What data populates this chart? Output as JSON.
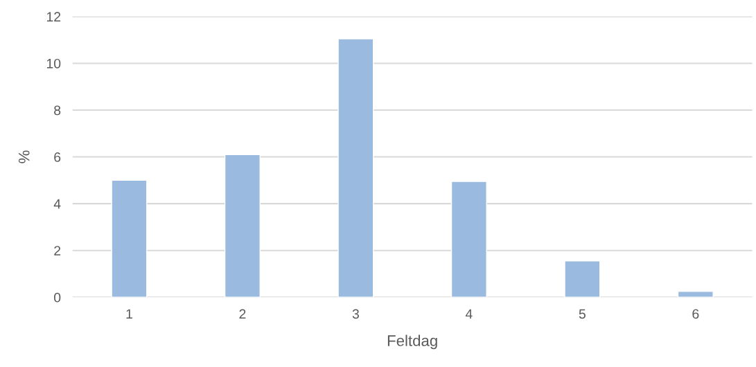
{
  "chart_data": {
    "type": "bar",
    "xlabel": "Feltdag",
    "ylabel": "%",
    "categories": [
      "1",
      "2",
      "3",
      "4",
      "5",
      "6"
    ],
    "values": [
      5.0,
      6.1,
      11.05,
      4.95,
      1.55,
      0.25
    ],
    "color": "#9bbae0",
    "ylim": [
      0,
      12
    ],
    "yticks": [
      0,
      2,
      4,
      6,
      8,
      10,
      12
    ],
    "grid": "y",
    "legend": false
  }
}
